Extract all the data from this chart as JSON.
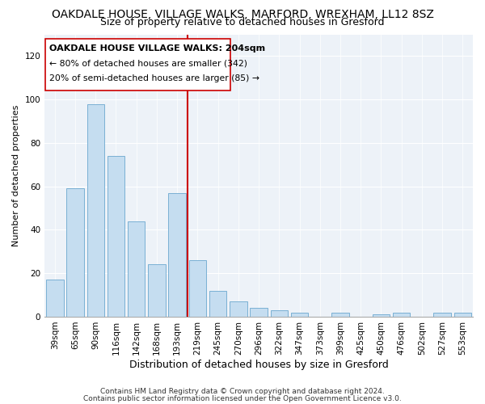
{
  "title": "OAKDALE HOUSE, VILLAGE WALKS, MARFORD, WREXHAM, LL12 8SZ",
  "subtitle": "Size of property relative to detached houses in Gresford",
  "xlabel": "Distribution of detached houses by size in Gresford",
  "ylabel": "Number of detached properties",
  "categories": [
    "39sqm",
    "65sqm",
    "90sqm",
    "116sqm",
    "142sqm",
    "168sqm",
    "193sqm",
    "219sqm",
    "245sqm",
    "270sqm",
    "296sqm",
    "322sqm",
    "347sqm",
    "373sqm",
    "399sqm",
    "425sqm",
    "450sqm",
    "476sqm",
    "502sqm",
    "527sqm",
    "553sqm"
  ],
  "values": [
    17,
    59,
    98,
    74,
    44,
    24,
    57,
    26,
    12,
    7,
    4,
    3,
    2,
    0,
    2,
    0,
    1,
    2,
    0,
    2,
    2
  ],
  "bar_color": "#c5ddf0",
  "bar_edge_color": "#7ab0d4",
  "vline_color": "#cc0000",
  "vline_pos": 6.5,
  "ylim": [
    0,
    130
  ],
  "yticks": [
    0,
    20,
    40,
    60,
    80,
    100,
    120
  ],
  "annotation_title": "OAKDALE HOUSE VILLAGE WALKS: 204sqm",
  "annotation_line1": "← 80% of detached houses are smaller (342)",
  "annotation_line2": "20% of semi-detached houses are larger (85) →",
  "footer1": "Contains HM Land Registry data © Crown copyright and database right 2024.",
  "footer2": "Contains public sector information licensed under the Open Government Licence v3.0.",
  "background_color": "#edf2f8",
  "title_fontsize": 10,
  "subtitle_fontsize": 9,
  "ylabel_fontsize": 8,
  "xlabel_fontsize": 9,
  "tick_fontsize": 7.5
}
